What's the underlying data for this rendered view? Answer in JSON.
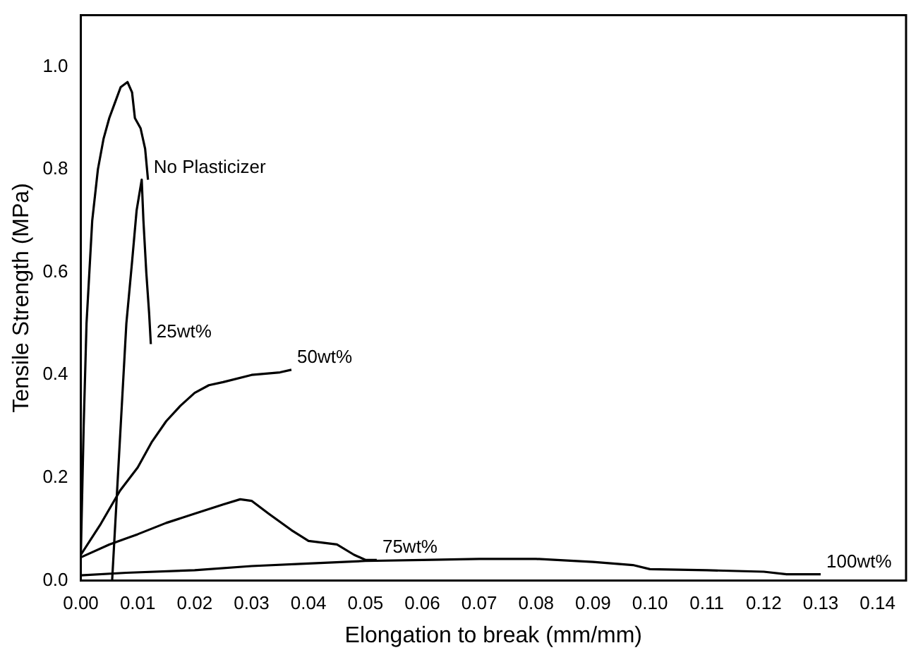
{
  "chart_data": {
    "type": "line",
    "xlabel": "Elongation to break (mm/mm)",
    "ylabel": "Tensile Strength (MPa)",
    "xlim": [
      0,
      0.145
    ],
    "ylim": [
      0,
      1.1
    ],
    "grid": false,
    "legend": false,
    "marker": "none",
    "line_style": "solid",
    "xticks": [
      {
        "value": 0,
        "label": "0.00"
      },
      {
        "value": 0.01,
        "label": "0.01"
      },
      {
        "value": 0.02,
        "label": "0.02"
      },
      {
        "value": 0.03,
        "label": "0.03"
      },
      {
        "value": 0.04,
        "label": "0.04"
      },
      {
        "value": 0.05,
        "label": "0.05"
      },
      {
        "value": 0.06,
        "label": "0.06"
      },
      {
        "value": 0.07,
        "label": "0.07"
      },
      {
        "value": 0.08,
        "label": "0.08"
      },
      {
        "value": 0.09,
        "label": "0.09"
      },
      {
        "value": 0.1,
        "label": "0.10"
      },
      {
        "value": 0.11,
        "label": "0.11"
      },
      {
        "value": 0.12,
        "label": "0.12"
      },
      {
        "value": 0.13,
        "label": "0.13"
      },
      {
        "value": 0.14,
        "label": "0.14"
      }
    ],
    "yticks": [
      {
        "value": 0,
        "label": "0.0"
      },
      {
        "value": 0.2,
        "label": "0.2"
      },
      {
        "value": 0.4,
        "label": "0.4"
      },
      {
        "value": 0.6,
        "label": "0.6"
      },
      {
        "value": 0.8,
        "label": "0.8"
      },
      {
        "value": 1.0,
        "label": "1.0"
      }
    ],
    "series": [
      {
        "name": "No Plasticizer",
        "color": "#000000",
        "x": [
          0,
          0.0005,
          0.001,
          0.0015,
          0.002,
          0.003,
          0.004,
          0.005,
          0.006,
          0.007,
          0.0082,
          0.009,
          0.0095,
          0.0105,
          0.0113,
          0.0118
        ],
        "values": [
          0.05,
          0.3,
          0.5,
          0.6,
          0.7,
          0.8,
          0.86,
          0.9,
          0.93,
          0.96,
          0.97,
          0.95,
          0.9,
          0.88,
          0.84,
          0.78
        ]
      },
      {
        "name": "25wt%",
        "color": "#000000",
        "x": [
          0.0055,
          0.006,
          0.0065,
          0.007,
          0.0075,
          0.008,
          0.009,
          0.0098,
          0.0107,
          0.011,
          0.0115,
          0.012,
          0.0123
        ],
        "values": [
          0.0,
          0.1,
          0.2,
          0.3,
          0.4,
          0.5,
          0.62,
          0.72,
          0.78,
          0.7,
          0.6,
          0.52,
          0.46
        ]
      },
      {
        "name": "50wt%",
        "color": "#000000",
        "x": [
          0,
          0.0035,
          0.0069,
          0.01,
          0.0125,
          0.015,
          0.0175,
          0.02,
          0.0225,
          0.025,
          0.03,
          0.035,
          0.037
        ],
        "values": [
          0.05,
          0.11,
          0.175,
          0.22,
          0.27,
          0.31,
          0.34,
          0.365,
          0.38,
          0.386,
          0.4,
          0.405,
          0.41
        ]
      },
      {
        "name": "75wt%",
        "color": "#000000",
        "x": [
          0,
          0.005,
          0.01,
          0.015,
          0.02,
          0.025,
          0.028,
          0.03,
          0.033,
          0.037,
          0.04,
          0.045,
          0.048,
          0.05,
          0.052
        ],
        "values": [
          0.045,
          0.07,
          0.09,
          0.112,
          0.13,
          0.148,
          0.158,
          0.155,
          0.13,
          0.098,
          0.077,
          0.07,
          0.05,
          0.04,
          0.04
        ]
      },
      {
        "name": "100wt%",
        "color": "#000000",
        "x": [
          0,
          0.008,
          0.02,
          0.03,
          0.04,
          0.05,
          0.06,
          0.07,
          0.08,
          0.09,
          0.097,
          0.1,
          0.11,
          0.12,
          0.124,
          0.13
        ],
        "values": [
          0.01,
          0.015,
          0.02,
          0.028,
          0.033,
          0.038,
          0.04,
          0.042,
          0.042,
          0.036,
          0.03,
          0.022,
          0.02,
          0.017,
          0.012,
          0.012
        ]
      }
    ]
  }
}
